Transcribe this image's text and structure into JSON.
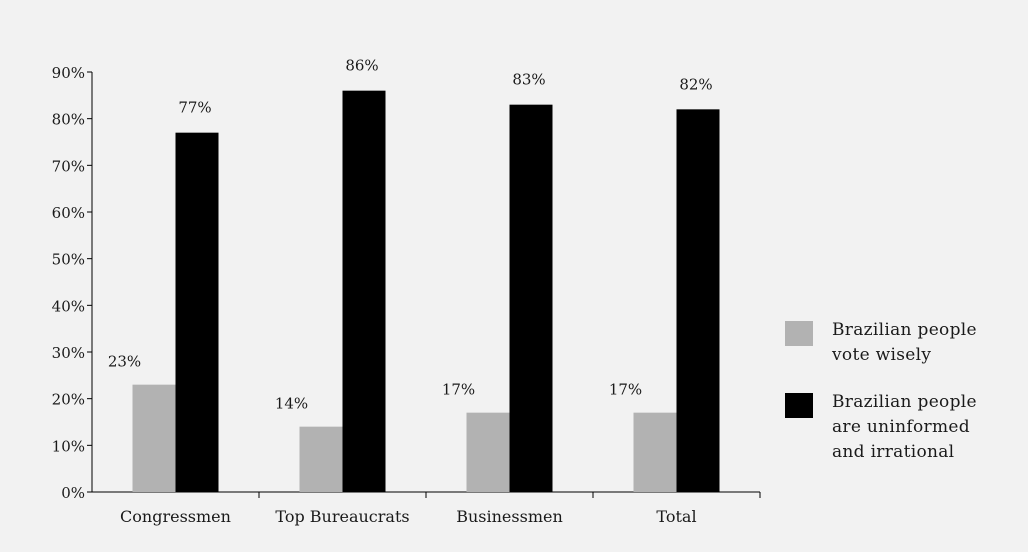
{
  "chart_data": {
    "type": "bar",
    "categories": [
      "Congressmen",
      "Top Bureaucrats",
      "Businessmen",
      "Total"
    ],
    "series": [
      {
        "name": "Brazilian people vote wisely",
        "values": [
          23,
          14,
          17,
          17
        ],
        "color": "#b2b2b2"
      },
      {
        "name": "Brazilian people are uninformed and irrational",
        "values": [
          77,
          86,
          83,
          82
        ],
        "color": "#000000"
      }
    ],
    "data_labels": [
      [
        "23%",
        "14%",
        "17%",
        "17%"
      ],
      [
        "77%",
        "86%",
        "83%",
        "82%"
      ]
    ],
    "ylim": [
      0,
      90
    ],
    "yticks": [
      0,
      10,
      20,
      30,
      40,
      50,
      60,
      70,
      80,
      90
    ],
    "ytick_labels": [
      "0%",
      "10%",
      "20%",
      "30%",
      "40%",
      "50%",
      "60%",
      "70%",
      "80%",
      "90%"
    ],
    "grid": false,
    "legend_position": "right",
    "background": "#f2f2f2"
  }
}
